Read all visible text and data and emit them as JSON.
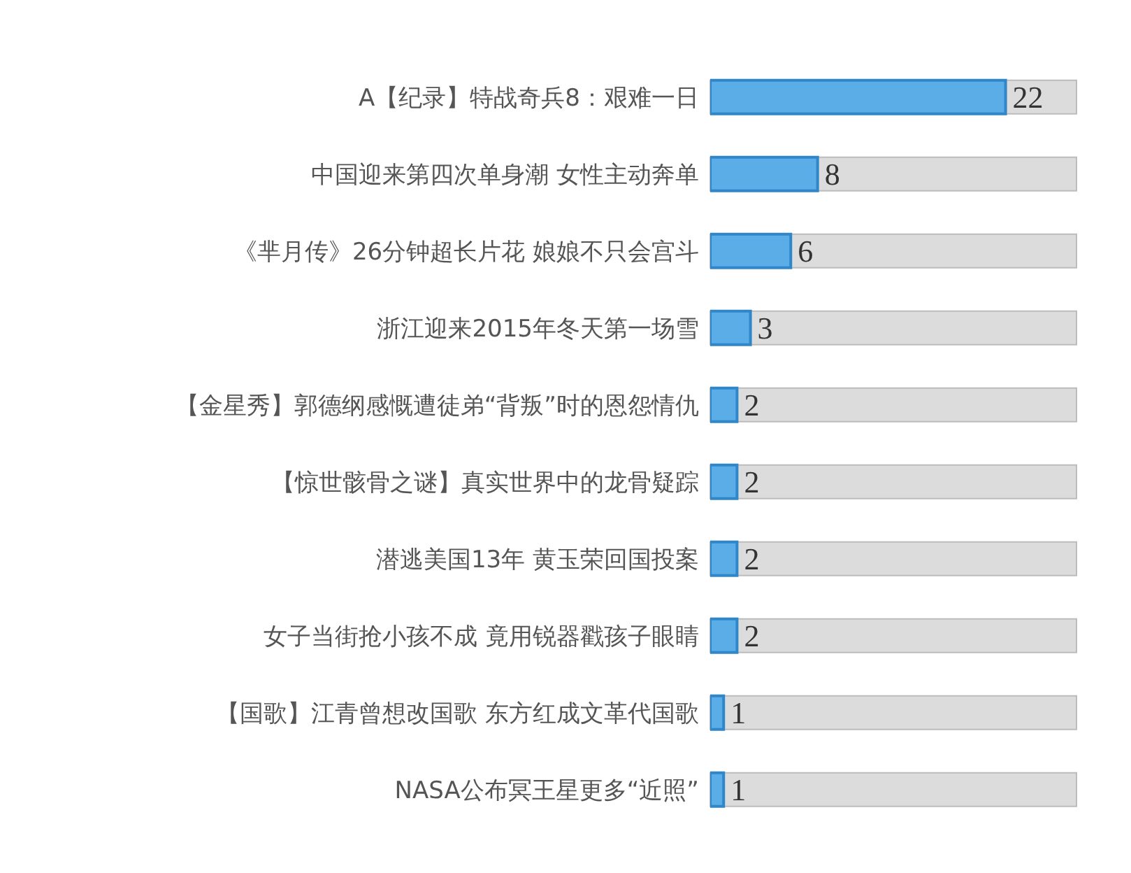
{
  "chart_data": {
    "type": "bar",
    "orientation": "horizontal",
    "categories": [
      "A【纪录】特战奇兵8：艰难一日",
      "中国迎来第四次单身潮 女性主动奔单",
      "《芈月传》26分钟超长片花 娘娘不只会宫斗",
      "浙江迎来2015年冬天第一场雪",
      "【金星秀】郭德纲感慨遭徒弟“背叛”时的恩怨情仇",
      "【惊世骸骨之谜】真实世界中的龙骨疑踪",
      "潜逃美国13年 黄玉荣回国投案",
      "女子当街抢小孩不成 竟用锐器戳孩子眼睛",
      "【国歌】江青曾想改国歌 东方红成文革代国歌",
      "NASA公布冥王星更多“近照”"
    ],
    "values": [
      22,
      8,
      6,
      3,
      2,
      2,
      2,
      2,
      1,
      1
    ],
    "color": "#5aade6",
    "data_labels": true,
    "tick_labels": "y"
  }
}
